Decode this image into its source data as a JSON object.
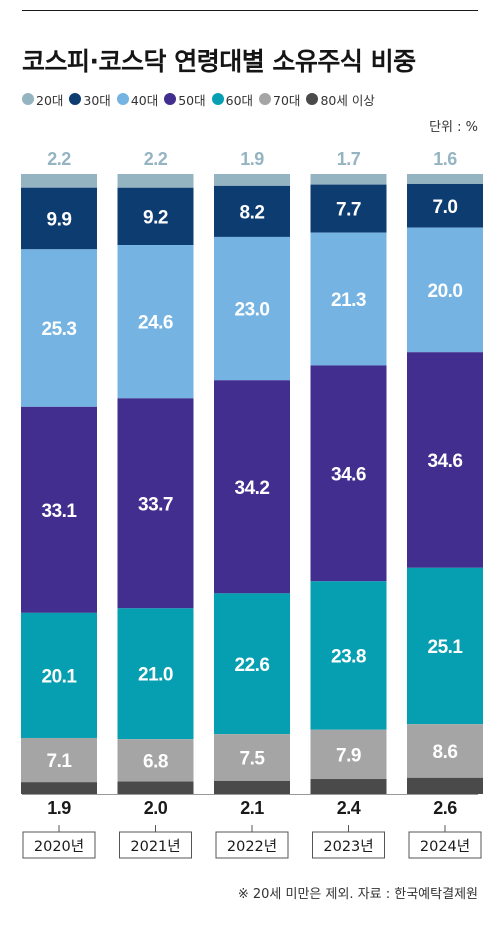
{
  "header": {
    "title": "코스피·코스닥 연령대별 소유주식 비중",
    "unit": "단위 : %"
  },
  "footer": {
    "note": "※ 20세 미만은 제외. 자료 : 한국예탁결제원"
  },
  "chart_data": {
    "type": "bar",
    "stacked": true,
    "orientation": "vertical",
    "unit": "%",
    "categories": [
      "2020년",
      "2021년",
      "2022년",
      "2023년",
      "2024년"
    ],
    "series": [
      {
        "name": "20대",
        "color": "#95b4c2",
        "values": [
          2.2,
          2.2,
          1.9,
          1.7,
          1.6
        ]
      },
      {
        "name": "30대",
        "color": "#0d3c70",
        "values": [
          9.9,
          9.2,
          8.2,
          7.7,
          7.0
        ]
      },
      {
        "name": "40대",
        "color": "#75b4e2",
        "values": [
          25.3,
          24.6,
          23.0,
          21.3,
          20.0
        ]
      },
      {
        "name": "50대",
        "color": "#412e8e",
        "values": [
          33.1,
          33.7,
          34.2,
          34.6,
          34.6
        ]
      },
      {
        "name": "60대",
        "color": "#059fb1",
        "values": [
          20.1,
          21.0,
          22.6,
          23.8,
          25.1
        ]
      },
      {
        "name": "70대",
        "color": "#a5a5a5",
        "values": [
          7.1,
          6.8,
          7.5,
          7.9,
          8.6
        ]
      },
      {
        "name": "80세 이상",
        "color": "#4a4a4a",
        "values": [
          1.9,
          2.0,
          2.1,
          2.4,
          2.6
        ]
      }
    ],
    "grid": false,
    "legend_position": "top"
  }
}
